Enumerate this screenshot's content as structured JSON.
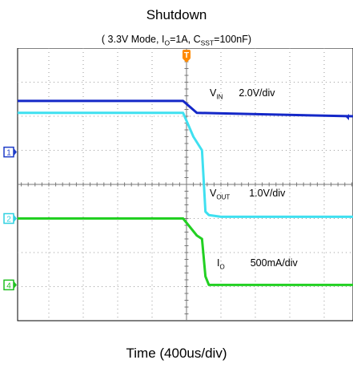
{
  "title": "Shutdown",
  "subtitle": {
    "open": "( 3.3V Mode, I",
    "io_sub": "O",
    "mid": "=1A, C",
    "css_sub": "SST",
    "close": "=100nF)"
  },
  "xlabel": "Time (400us/div)",
  "trigger_marker": "T",
  "chart_data": {
    "type": "line",
    "x_unit": "div",
    "x_range": [
      -5,
      5
    ],
    "y_range": [
      -4,
      4
    ],
    "grid": true,
    "series": [
      {
        "key": "vin",
        "label_main": "V",
        "label_sub": "IN",
        "scale": "2.0V/div",
        "color": "#1428c8",
        "x": [
          -5,
          -0.1,
          0.3,
          5
        ],
        "y": [
          2.45,
          2.45,
          2.1,
          2.0
        ]
      },
      {
        "key": "vout",
        "label_main": "V",
        "label_sub": "OUT",
        "scale": "1.0V/div",
        "color": "#3fe0f0",
        "x": [
          -5,
          -0.1,
          0.2,
          0.45,
          0.55,
          0.65,
          1.0,
          5
        ],
        "y": [
          2.1,
          2.1,
          1.4,
          1.0,
          -0.8,
          -0.9,
          -0.95,
          -0.95
        ]
      },
      {
        "key": "io",
        "label_main": "I",
        "label_sub": "O",
        "scale": "500mA/div",
        "color": "#22d022",
        "x": [
          -5,
          -0.1,
          0.3,
          0.45,
          0.55,
          0.65,
          1.0,
          5
        ],
        "y": [
          -1.0,
          -1.0,
          -1.5,
          -1.6,
          -2.7,
          -2.95,
          -2.95,
          -2.95
        ]
      }
    ],
    "channel_markers": [
      {
        "text": "1",
        "color": "#1e3cc8",
        "y": 0.95
      },
      {
        "text": "2",
        "color": "#2fd0e0",
        "y": -1.0
      },
      {
        "text": "4",
        "color": "#1fbf1f",
        "y": -2.95
      }
    ]
  }
}
